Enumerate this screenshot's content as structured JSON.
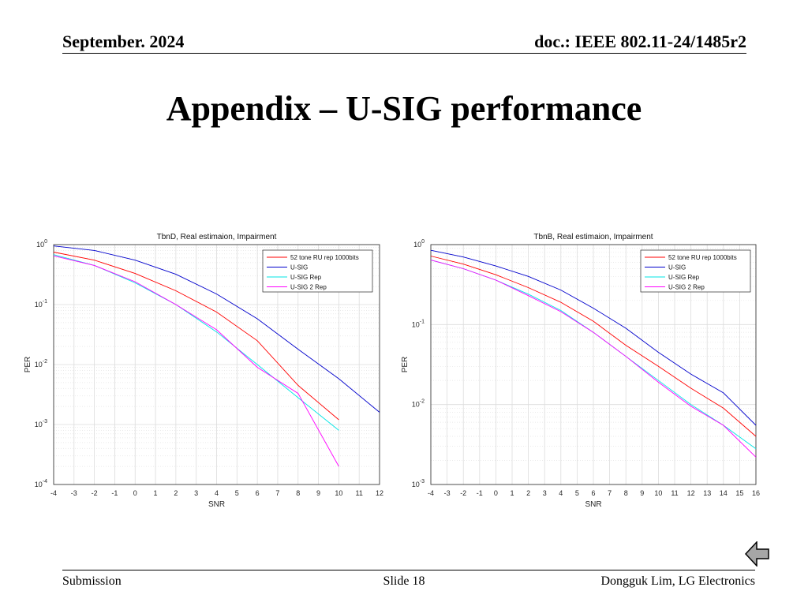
{
  "header": {
    "date": "September. 2024",
    "doc_id": "doc.: IEEE 802.11-24/1485r2"
  },
  "slide_title": "Appendix – U-SIG performance",
  "footer": {
    "left": "Submission",
    "center": "Slide 18",
    "right": "Dongguk Lim, LG Electronics"
  },
  "colors": {
    "52 tone RU rep 1000bits": "#ff0000",
    "U-SIG": "#0000cc",
    "U-SIG Rep": "#00e5e5",
    "U-SIG 2 Rep": "#ff00ff"
  },
  "icons": {
    "back": "back-arrow-icon"
  },
  "chart_data": [
    {
      "type": "line",
      "title": "TbnD, Real estimaion, Impairment",
      "xlabel": "SNR",
      "ylabel": "PER",
      "y_scale": "log",
      "xlim": [
        -4,
        12
      ],
      "ylim": [
        0.0001,
        1
      ],
      "xticks": [
        -4,
        -3,
        -2,
        -1,
        0,
        1,
        2,
        3,
        4,
        5,
        6,
        7,
        8,
        9,
        10,
        11,
        12
      ],
      "yticks": [
        {
          "base": "10",
          "exp": "-4",
          "v": -4
        },
        {
          "base": "10",
          "exp": "-3",
          "v": -3
        },
        {
          "base": "10",
          "exp": "-2",
          "v": -2
        },
        {
          "base": "10",
          "exp": "-1",
          "v": -1
        },
        {
          "base": "10",
          "exp": "0",
          "v": 0
        }
      ],
      "grid": true,
      "legend": "top-right",
      "series": [
        {
          "name": "52 tone RU rep 1000bits",
          "x": [
            -4,
            -2,
            0,
            2,
            4,
            6,
            8,
            10
          ],
          "y": [
            0.75,
            0.55,
            0.33,
            0.17,
            0.075,
            0.025,
            0.0045,
            0.0012
          ]
        },
        {
          "name": "U-SIG",
          "x": [
            -4,
            -2,
            0,
            2,
            4,
            6,
            8,
            10,
            12
          ],
          "y": [
            0.95,
            0.8,
            0.55,
            0.32,
            0.15,
            0.058,
            0.018,
            0.0058,
            0.0016
          ]
        },
        {
          "name": "U-SIG Rep",
          "x": [
            -4,
            -2,
            0,
            2,
            4,
            6,
            8,
            10
          ],
          "y": [
            0.68,
            0.45,
            0.23,
            0.1,
            0.035,
            0.01,
            0.0028,
            0.0008
          ]
        },
        {
          "name": "U-SIG 2 Rep",
          "x": [
            -4,
            -2,
            0,
            2,
            4,
            6,
            8,
            10
          ],
          "y": [
            0.65,
            0.45,
            0.24,
            0.1,
            0.038,
            0.009,
            0.0033,
            0.0002
          ]
        }
      ]
    },
    {
      "type": "line",
      "title": "TbnB, Real estimaion, Impairment",
      "xlabel": "SNR",
      "ylabel": "PER",
      "y_scale": "log",
      "xlim": [
        -4,
        16
      ],
      "ylim": [
        0.001,
        1
      ],
      "xticks": [
        -4,
        -3,
        -2,
        -1,
        0,
        1,
        2,
        3,
        4,
        5,
        6,
        7,
        8,
        9,
        10,
        11,
        12,
        13,
        14,
        15,
        16
      ],
      "yticks": [
        {
          "base": "10",
          "exp": "-3",
          "v": -3
        },
        {
          "base": "10",
          "exp": "-2",
          "v": -2
        },
        {
          "base": "10",
          "exp": "-1",
          "v": -1
        },
        {
          "base": "10",
          "exp": "0",
          "v": 0
        }
      ],
      "grid": true,
      "legend": "top-right",
      "series": [
        {
          "name": "52 tone RU rep 1000bits",
          "x": [
            -4,
            -2,
            0,
            2,
            4,
            6,
            8,
            10,
            12,
            14,
            16
          ],
          "y": [
            0.72,
            0.57,
            0.42,
            0.29,
            0.19,
            0.11,
            0.055,
            0.03,
            0.016,
            0.009,
            0.004
          ]
        },
        {
          "name": "U-SIG",
          "x": [
            -4,
            -2,
            0,
            2,
            4,
            6,
            8,
            10,
            12,
            14,
            16
          ],
          "y": [
            0.85,
            0.7,
            0.54,
            0.4,
            0.27,
            0.16,
            0.09,
            0.045,
            0.024,
            0.014,
            0.0055
          ]
        },
        {
          "name": "U-SIG Rep",
          "x": [
            -4,
            -2,
            0,
            2,
            4,
            6,
            8,
            10,
            12,
            14,
            16
          ],
          "y": [
            0.64,
            0.5,
            0.36,
            0.24,
            0.15,
            0.08,
            0.04,
            0.02,
            0.01,
            0.0055,
            0.0028
          ]
        },
        {
          "name": "U-SIG 2 Rep",
          "x": [
            -4,
            -2,
            0,
            2,
            4,
            6,
            8,
            10,
            12,
            14,
            16
          ],
          "y": [
            0.64,
            0.5,
            0.36,
            0.23,
            0.145,
            0.08,
            0.04,
            0.019,
            0.0095,
            0.0055,
            0.0022
          ]
        }
      ]
    }
  ]
}
